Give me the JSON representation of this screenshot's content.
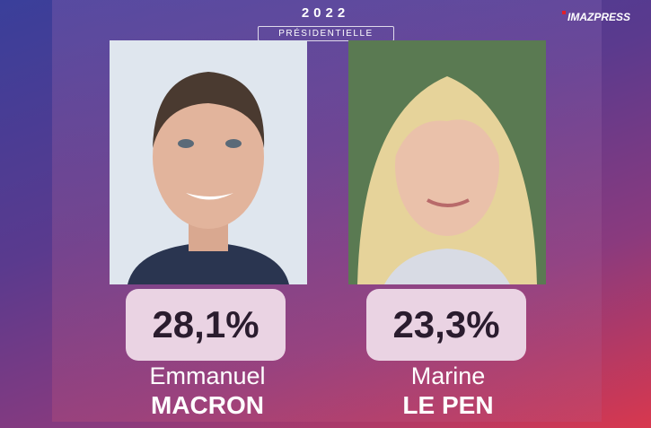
{
  "header": {
    "year": "2022",
    "subtitle": "PRÉSIDENTIELLE",
    "logo": "IMAZPRESS"
  },
  "candidates": [
    {
      "score": "28,1%",
      "first_name": "Emmanuel",
      "last_name": "MACRON"
    },
    {
      "score": "23,3%",
      "first_name": "Marine",
      "last_name": "LE PEN"
    }
  ]
}
